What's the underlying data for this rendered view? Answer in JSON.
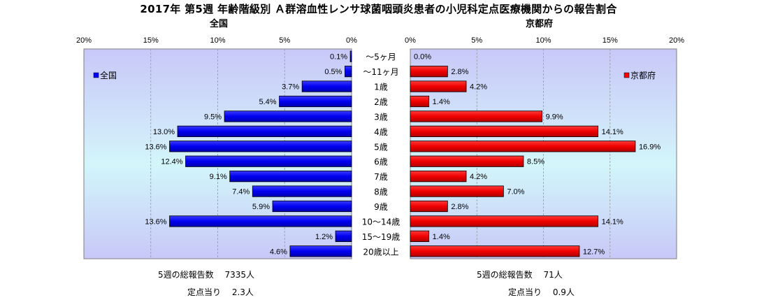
{
  "title": "2017年 第5週 年齢階級別 Ａ群溶血性レンサ球菌咽頭炎患者の小児科定点医療機関からの報告割合",
  "chart_data": [
    {
      "type": "bar",
      "orientation": "horizontal",
      "title": "全国",
      "legend": "全国",
      "legend_position": "top-left",
      "color": "#0000ff",
      "direction": "leftward",
      "xlim": [
        0,
        20
      ],
      "ticks": [
        "20%",
        "15%",
        "10%",
        "5%",
        "0%"
      ],
      "categories": [
        "～5ヶ月",
        "～11ヶ月",
        "1歳",
        "2歳",
        "3歳",
        "4歳",
        "5歳",
        "6歳",
        "7歳",
        "8歳",
        "9歳",
        "10～14歳",
        "15～19歳",
        "20歳以上"
      ],
      "values": [
        0.1,
        0.5,
        3.7,
        5.4,
        9.5,
        13.0,
        13.6,
        12.4,
        9.1,
        7.4,
        5.9,
        13.6,
        1.2,
        4.6
      ],
      "labels": [
        "0.1%",
        "0.5%",
        "3.7%",
        "5.4%",
        "9.5%",
        "13.0%",
        "13.6%",
        "12.4%",
        "9.1%",
        "7.4%",
        "5.9%",
        "13.6%",
        "1.2%",
        "4.6%"
      ]
    },
    {
      "type": "bar",
      "orientation": "horizontal",
      "title": "京都府",
      "legend": "京都府",
      "legend_position": "top-right",
      "color": "#ff0000",
      "direction": "rightward",
      "xlim": [
        0,
        20
      ],
      "ticks": [
        "0%",
        "5%",
        "10%",
        "15%",
        "20%"
      ],
      "categories": [
        "～5ヶ月",
        "～11ヶ月",
        "1歳",
        "2歳",
        "3歳",
        "4歳",
        "5歳",
        "6歳",
        "7歳",
        "8歳",
        "9歳",
        "10～14歳",
        "15～19歳",
        "20歳以上"
      ],
      "values": [
        0.0,
        2.8,
        4.2,
        1.4,
        9.9,
        14.1,
        16.9,
        8.5,
        4.2,
        7.0,
        2.8,
        14.1,
        1.4,
        12.7
      ],
      "labels": [
        "0.0%",
        "2.8%",
        "4.2%",
        "1.4%",
        "9.9%",
        "14.1%",
        "16.9%",
        "8.5%",
        "4.2%",
        "7.0%",
        "2.8%",
        "14.1%",
        "1.4%",
        "12.7%"
      ]
    }
  ],
  "footer": {
    "left_line1": "5週の総報告数　 7335人",
    "left_line2": "定点当り　 2.3人",
    "right_line1": "5週の総報告数　 71人",
    "right_line2": "定点当り　 0.9人"
  }
}
